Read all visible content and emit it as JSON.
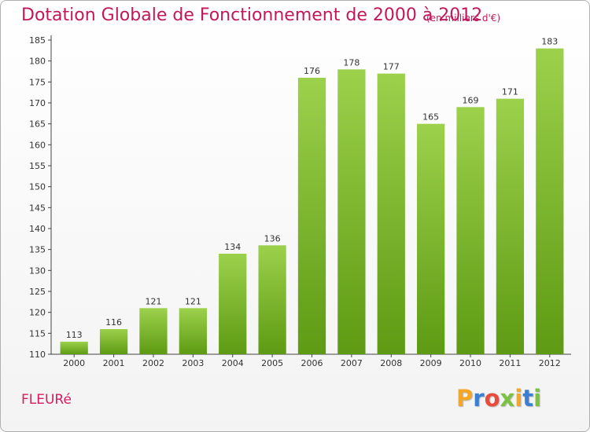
{
  "header": {
    "title": "Dotation Globale de Fonctionnement de 2000 à 2012",
    "unit": "(en milliers d'€)"
  },
  "footer": {
    "city": "FLEURé",
    "logo": {
      "letters": [
        "P",
        "r",
        "o",
        "x",
        "i",
        "t",
        "i"
      ],
      "colors": [
        "#f5a623",
        "#3b7fd4",
        "#e94b3c",
        "#7cc242",
        "#f5a623",
        "#3b7fd4",
        "#7cc242"
      ]
    }
  },
  "chart_data": {
    "type": "bar",
    "categories": [
      "2000",
      "2001",
      "2002",
      "2003",
      "2004",
      "2005",
      "2006",
      "2007",
      "2008",
      "2009",
      "2010",
      "2011",
      "2012"
    ],
    "values": [
      113,
      116,
      121,
      121,
      134,
      136,
      176,
      178,
      177,
      165,
      169,
      171,
      183
    ],
    "data_labels": [
      "113",
      "116",
      "121",
      "121",
      "134",
      "136",
      "176",
      "178",
      "177",
      "165",
      "169",
      "171",
      "183"
    ],
    "title": "Dotation Globale de Fonctionnement de 2000 à 2012",
    "xlabel": "",
    "ylabel": "",
    "ylim": [
      110,
      185
    ],
    "yticks": [
      110,
      115,
      120,
      125,
      130,
      135,
      140,
      145,
      150,
      155,
      160,
      165,
      170,
      175,
      180,
      185
    ],
    "grid": false,
    "bar_color_top": "#9cd14c",
    "bar_color_bottom": "#5e9a13"
  }
}
